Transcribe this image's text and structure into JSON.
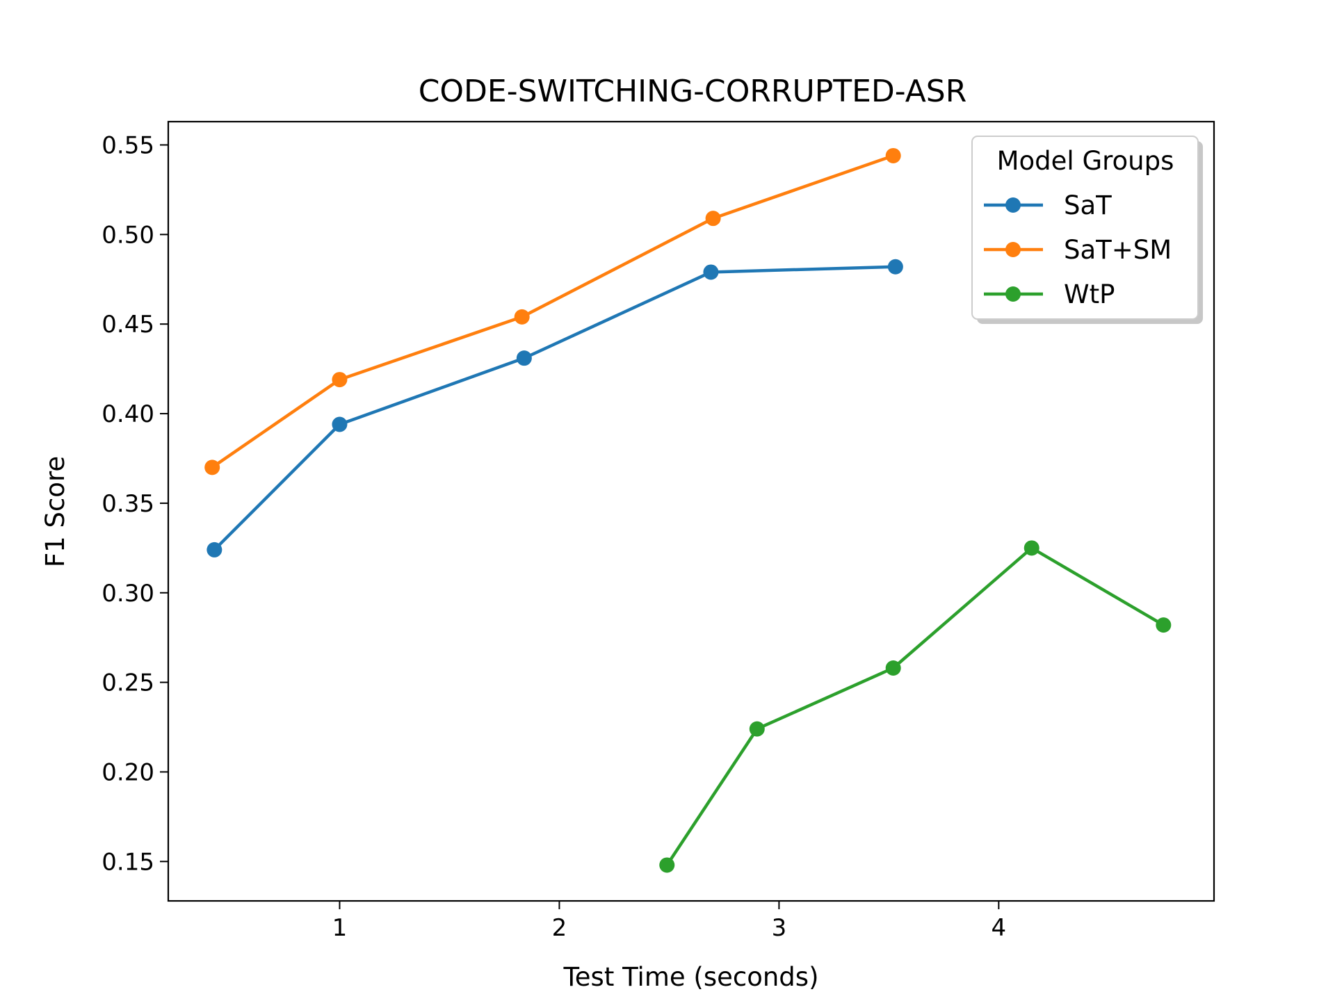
{
  "chart_data": {
    "type": "line",
    "title": "CODE-SWITCHING-CORRUPTED-ASR",
    "xlabel": "Test Time (seconds)",
    "ylabel": "F1 Score",
    "xlim": [
      0.22,
      4.98
    ],
    "ylim": [
      0.128,
      0.563
    ],
    "xticks": [
      1,
      2,
      3,
      4
    ],
    "yticks": [
      0.15,
      0.2,
      0.25,
      0.3,
      0.35,
      0.4,
      0.45,
      0.5,
      0.55
    ],
    "ytick_labels": [
      "0.15",
      "0.20",
      "0.25",
      "0.30",
      "0.35",
      "0.40",
      "0.45",
      "0.50",
      "0.55"
    ],
    "xtick_labels": [
      "1",
      "2",
      "3",
      "4"
    ],
    "grid": false,
    "legend": {
      "title": "Model Groups",
      "placement": "top-right"
    },
    "series": [
      {
        "name": "SaT",
        "color": "#1f77b4",
        "x": [
          0.43,
          1.0,
          1.84,
          2.69,
          3.53
        ],
        "y": [
          0.324,
          0.394,
          0.431,
          0.479,
          0.482
        ]
      },
      {
        "name": "SaT+SM",
        "color": "#ff7f0e",
        "x": [
          0.42,
          1.0,
          1.83,
          2.7,
          3.52
        ],
        "y": [
          0.37,
          0.419,
          0.454,
          0.509,
          0.544
        ]
      },
      {
        "name": "WtP",
        "color": "#2ca02c",
        "x": [
          2.49,
          2.9,
          3.52,
          4.15,
          4.75
        ],
        "y": [
          0.148,
          0.224,
          0.258,
          0.325,
          0.282
        ]
      }
    ]
  }
}
